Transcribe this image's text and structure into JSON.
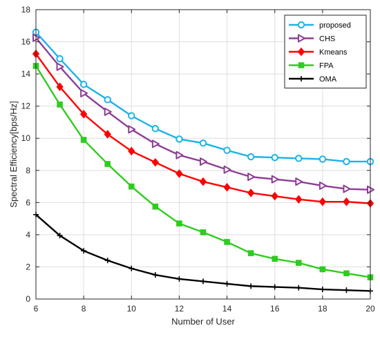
{
  "chart_data": {
    "type": "line",
    "xlabel": "Number of User",
    "ylabel": "Spectral Efficiency[bps/Hz]",
    "xlim": [
      6,
      20
    ],
    "ylim": [
      0,
      18
    ],
    "xticks": [
      6,
      8,
      10,
      12,
      14,
      16,
      18,
      20
    ],
    "yticks": [
      0,
      2,
      4,
      6,
      8,
      10,
      12,
      14,
      16,
      18
    ],
    "grid": true,
    "legend_position": "top-right",
    "x": [
      6,
      7,
      8,
      9,
      10,
      11,
      12,
      13,
      14,
      15,
      16,
      17,
      18,
      19,
      20
    ],
    "series": [
      {
        "name": "proposed",
        "color": "#1ab2e8",
        "marker": "circle",
        "values": [
          16.6,
          14.95,
          13.35,
          12.4,
          11.4,
          10.6,
          9.95,
          9.7,
          9.25,
          8.85,
          8.8,
          8.75,
          8.7,
          8.55,
          8.55
        ]
      },
      {
        "name": "CHS",
        "color": "#8e3c96",
        "marker": "triangle-right",
        "values": [
          16.25,
          14.45,
          12.8,
          11.65,
          10.55,
          9.65,
          8.95,
          8.55,
          8.05,
          7.6,
          7.45,
          7.3,
          7.05,
          6.85,
          6.8
        ]
      },
      {
        "name": "Kmeans",
        "color": "#ff0000",
        "marker": "diamond",
        "values": [
          15.25,
          13.2,
          11.5,
          10.25,
          9.2,
          8.5,
          7.8,
          7.3,
          6.95,
          6.6,
          6.4,
          6.2,
          6.05,
          6.05,
          5.95
        ]
      },
      {
        "name": "FPA",
        "color": "#2ecc1e",
        "marker": "square",
        "values": [
          14.5,
          12.1,
          9.9,
          8.4,
          7.0,
          5.75,
          4.7,
          4.15,
          3.55,
          2.85,
          2.5,
          2.25,
          1.85,
          1.6,
          1.35
        ]
      },
      {
        "name": "OMA",
        "color": "#000000",
        "marker": "plus",
        "values": [
          5.25,
          3.95,
          3.0,
          2.4,
          1.9,
          1.5,
          1.25,
          1.1,
          0.95,
          0.8,
          0.75,
          0.7,
          0.6,
          0.55,
          0.5
        ]
      }
    ]
  }
}
